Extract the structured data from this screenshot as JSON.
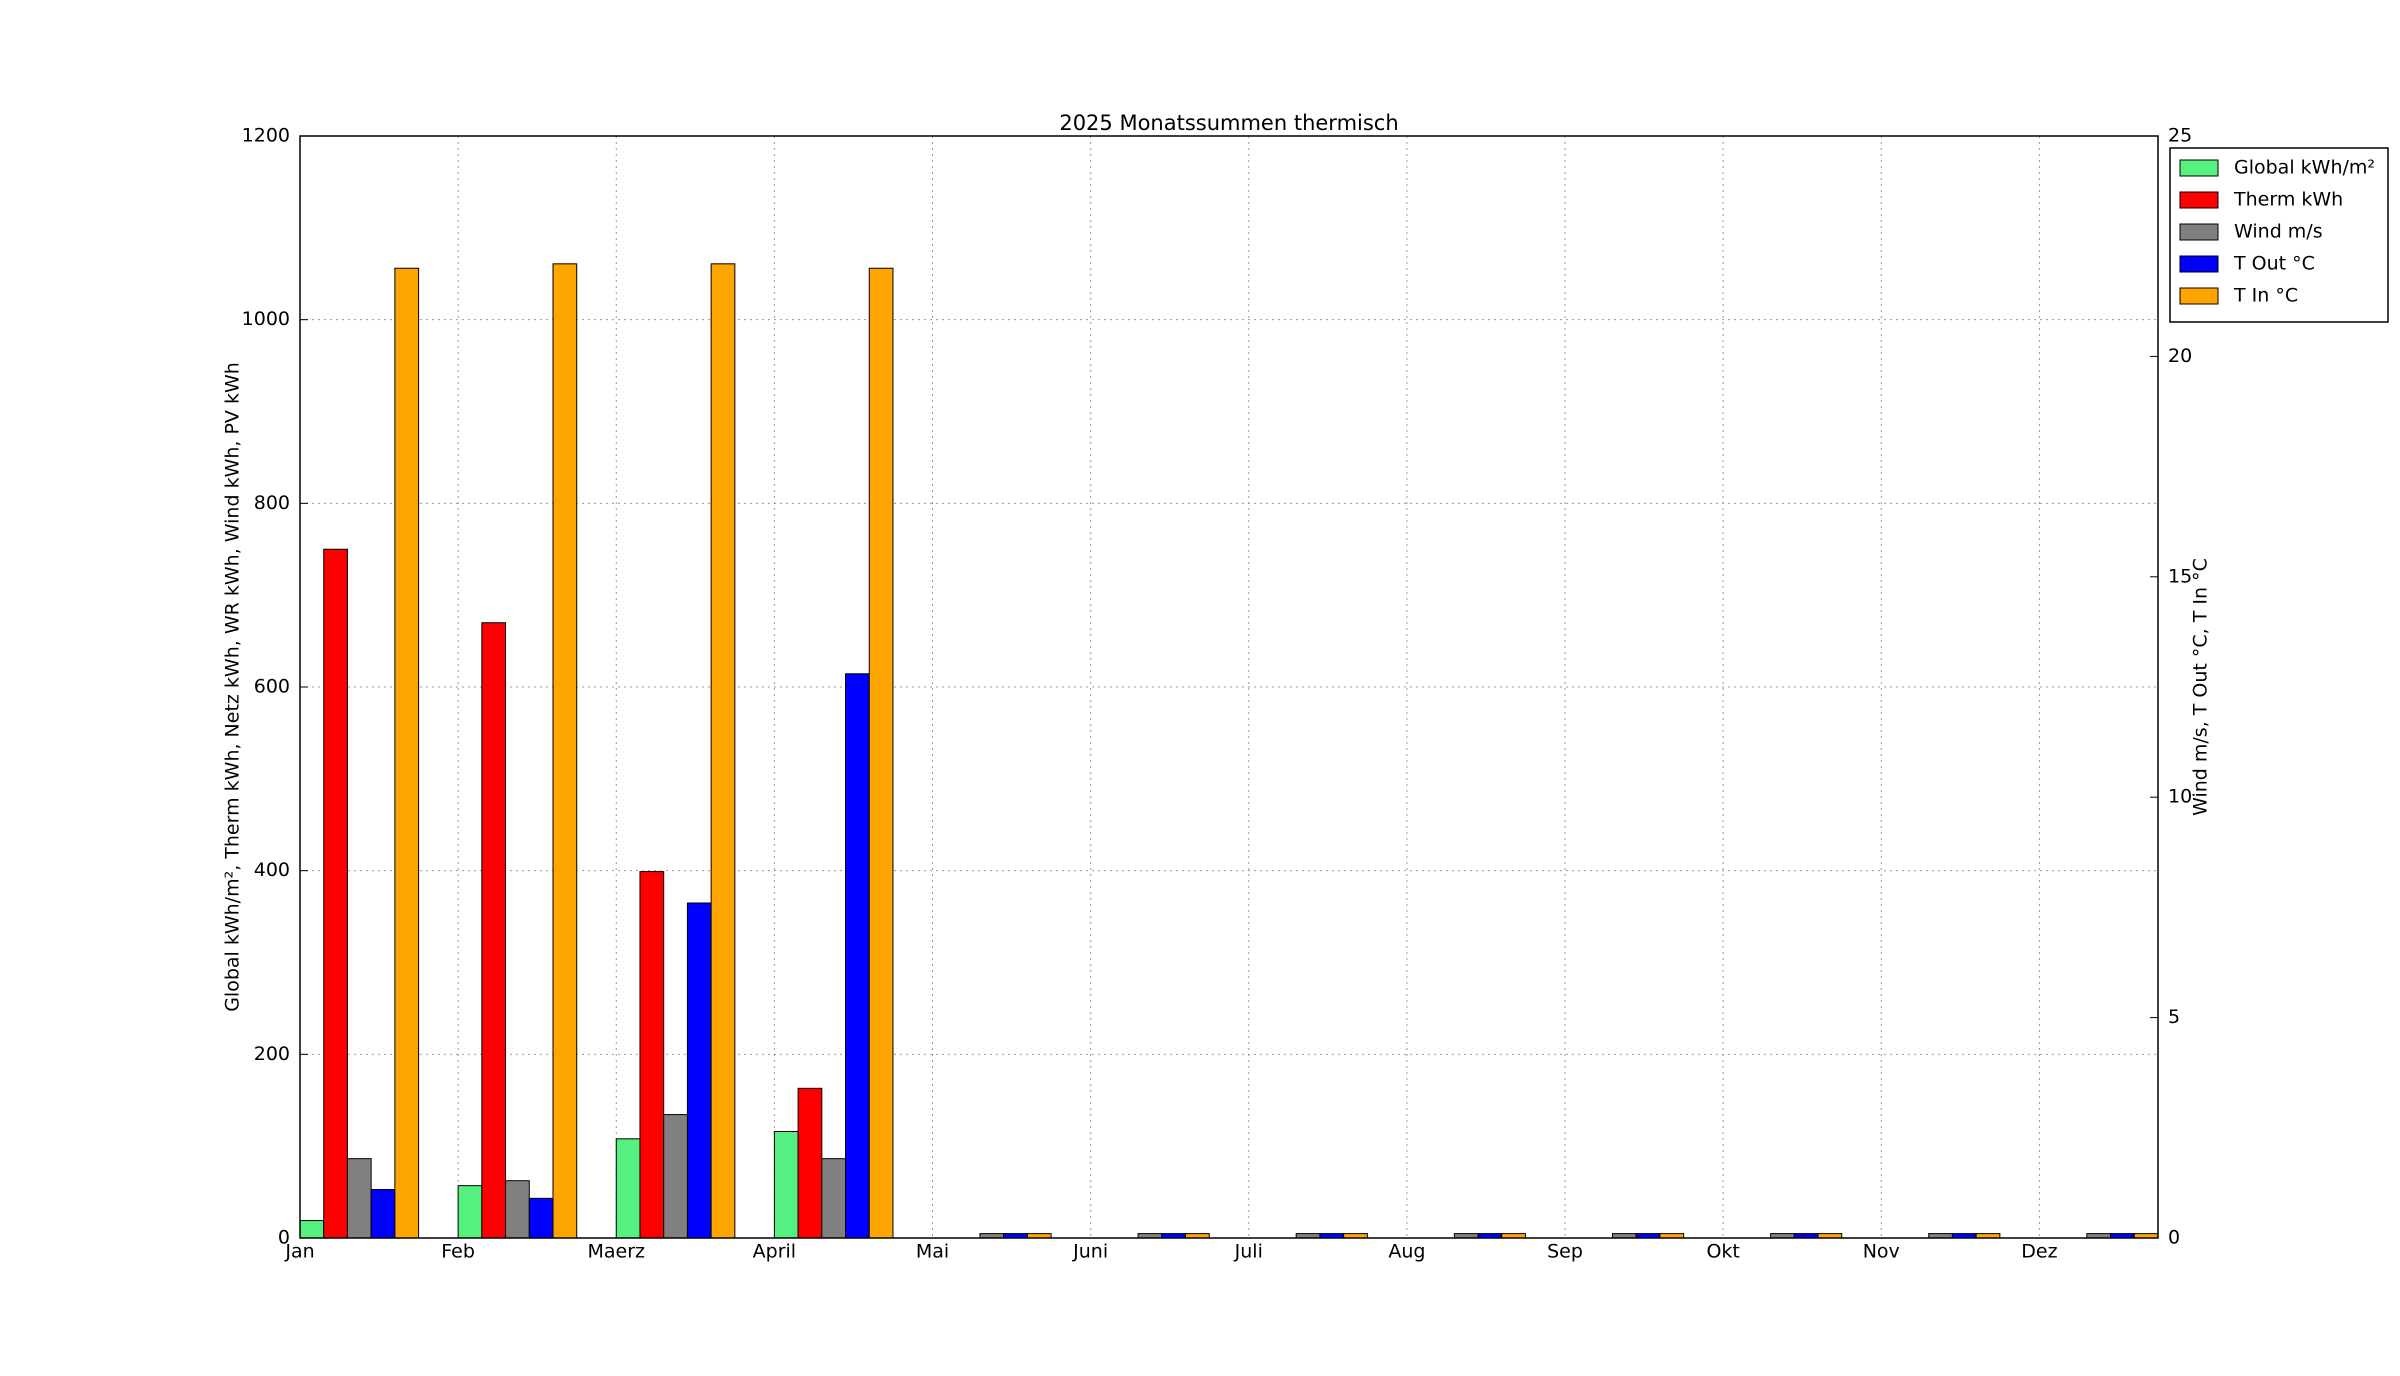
{
  "chart_data": {
    "type": "bar",
    "title": "2025 Monatssummen thermisch",
    "y_label": "Global kWh/m², Therm kWh, Netz kWh, WR kWh, Wind kWh, PV kWh",
    "y2_label": "Wind m/s, T Out °C, T In °C",
    "categories": [
      "Jan",
      "Feb",
      "Maerz",
      "April",
      "Mai",
      "Juni",
      "Juli",
      "Aug",
      "Sep",
      "Okt",
      "Nov",
      "Dez"
    ],
    "series": [
      {
        "name": "Global kWh/m²",
        "color": "#55f07f",
        "values": [
          19,
          57,
          108,
          116,
          0,
          0,
          0,
          0,
          0,
          0,
          0,
          0
        ]
      },
      {
        "name": "Therm kWh",
        "color": "#ff0000",
        "values": [
          750,
          670,
          399,
          163,
          0,
          0,
          0,
          0,
          0,
          0,
          0,
          0
        ]
      },
      {
        "name": "Wind m/s",
        "color": "#808080",
        "axis": "y2",
        "values": [
          1.8,
          1.3,
          2.8,
          1.8,
          0.1,
          0.1,
          0.1,
          0.1,
          0.1,
          0.1,
          0.1,
          0.1
        ]
      },
      {
        "name": "T Out °C",
        "color": "#0000ff",
        "axis": "y2",
        "values": [
          1.1,
          0.9,
          7.6,
          12.8,
          0.1,
          0.1,
          0.1,
          0.1,
          0.1,
          0.1,
          0.1,
          0.1
        ]
      },
      {
        "name": "T In °C",
        "color": "#ffa500",
        "axis": "y2",
        "values": [
          22.0,
          22.1,
          22.1,
          22.0,
          0.1,
          0.1,
          0.1,
          0.1,
          0.1,
          0.1,
          0.1,
          0.1
        ]
      }
    ],
    "ylim": [
      0,
      1200
    ],
    "yticks": [
      0,
      200,
      400,
      600,
      800,
      1000,
      1200
    ],
    "y2lim": [
      0,
      25
    ],
    "y2ticks": [
      0,
      5,
      10,
      15,
      20,
      25
    ],
    "grid": true,
    "legend": "outside upper right"
  }
}
